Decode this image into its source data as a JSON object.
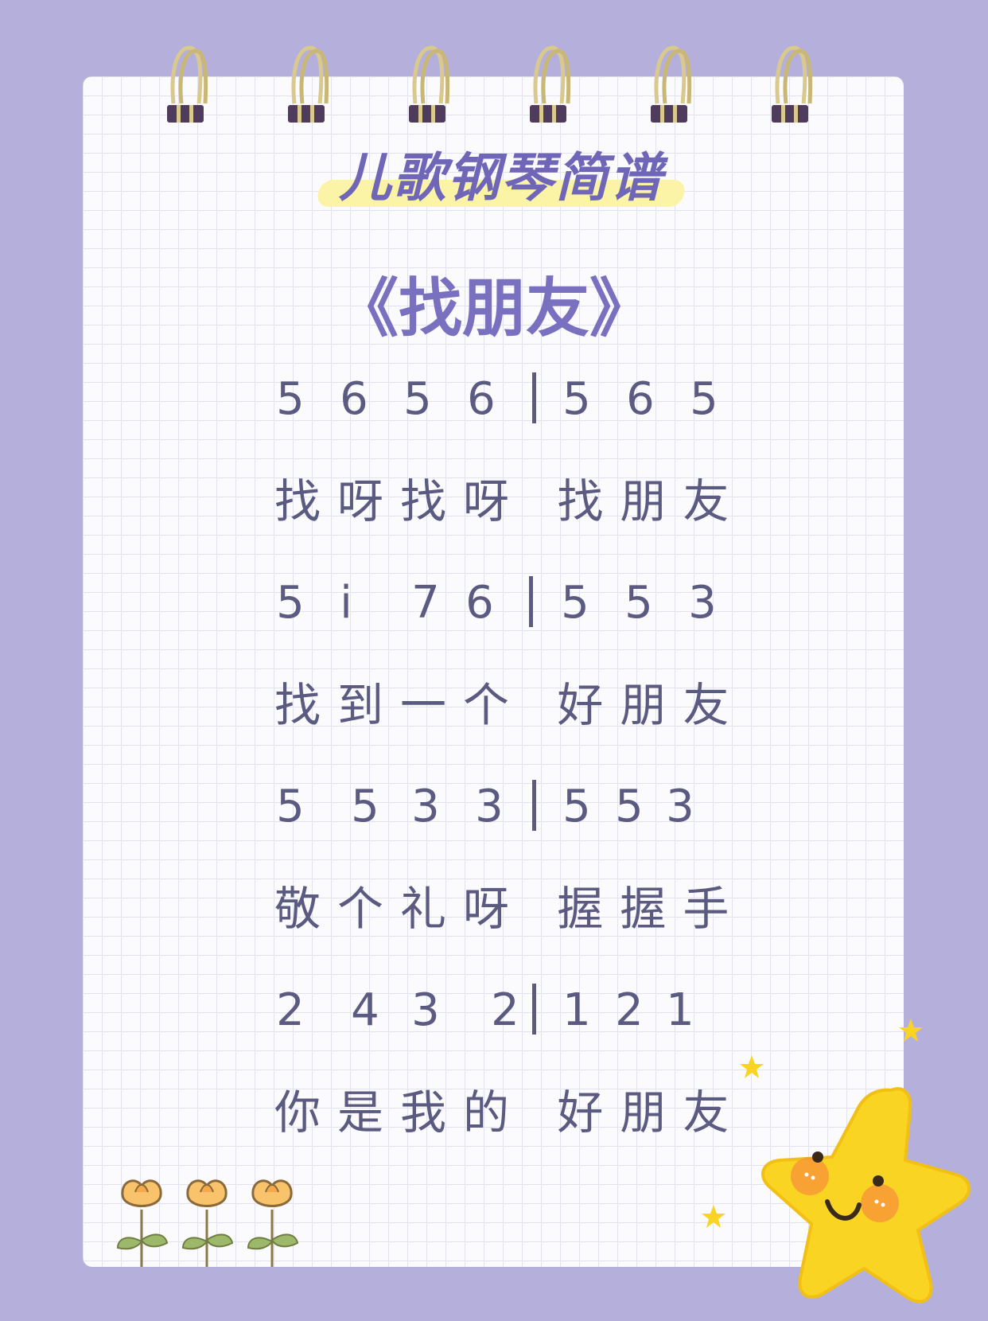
{
  "header": {
    "title": "儿歌钢琴简谱"
  },
  "song": {
    "title": "《找朋友》"
  },
  "notation": {
    "line1": {
      "left": [
        "5",
        "6",
        "5",
        "6"
      ],
      "right": [
        "5",
        "6",
        "5"
      ]
    },
    "lyrics1": "找呀找呀 找朋友",
    "line2": {
      "left": [
        "5",
        "i",
        "7",
        "6"
      ],
      "right": [
        "5",
        "5",
        "3"
      ]
    },
    "lyrics2": "找到一个 好朋友",
    "line3": {
      "left": [
        "5",
        "5",
        "3",
        "3"
      ],
      "right": [
        "5",
        "5",
        "3"
      ]
    },
    "lyrics3": "敬个礼呀 握握手",
    "line4": {
      "left": [
        "2",
        "4",
        "3",
        "2"
      ],
      "right": [
        "1",
        "2",
        "1"
      ]
    },
    "lyrics4": "你是我的 好朋友"
  },
  "colors": {
    "background": "#b4b0db",
    "title": "#7a70c0",
    "text": "#5b5a80",
    "highlight": "#fbf3a6",
    "star": "#f9d423"
  },
  "icons": [
    "spiral-ring-icon",
    "flower-icon",
    "smiling-star-icon",
    "sparkle-star-icon"
  ]
}
